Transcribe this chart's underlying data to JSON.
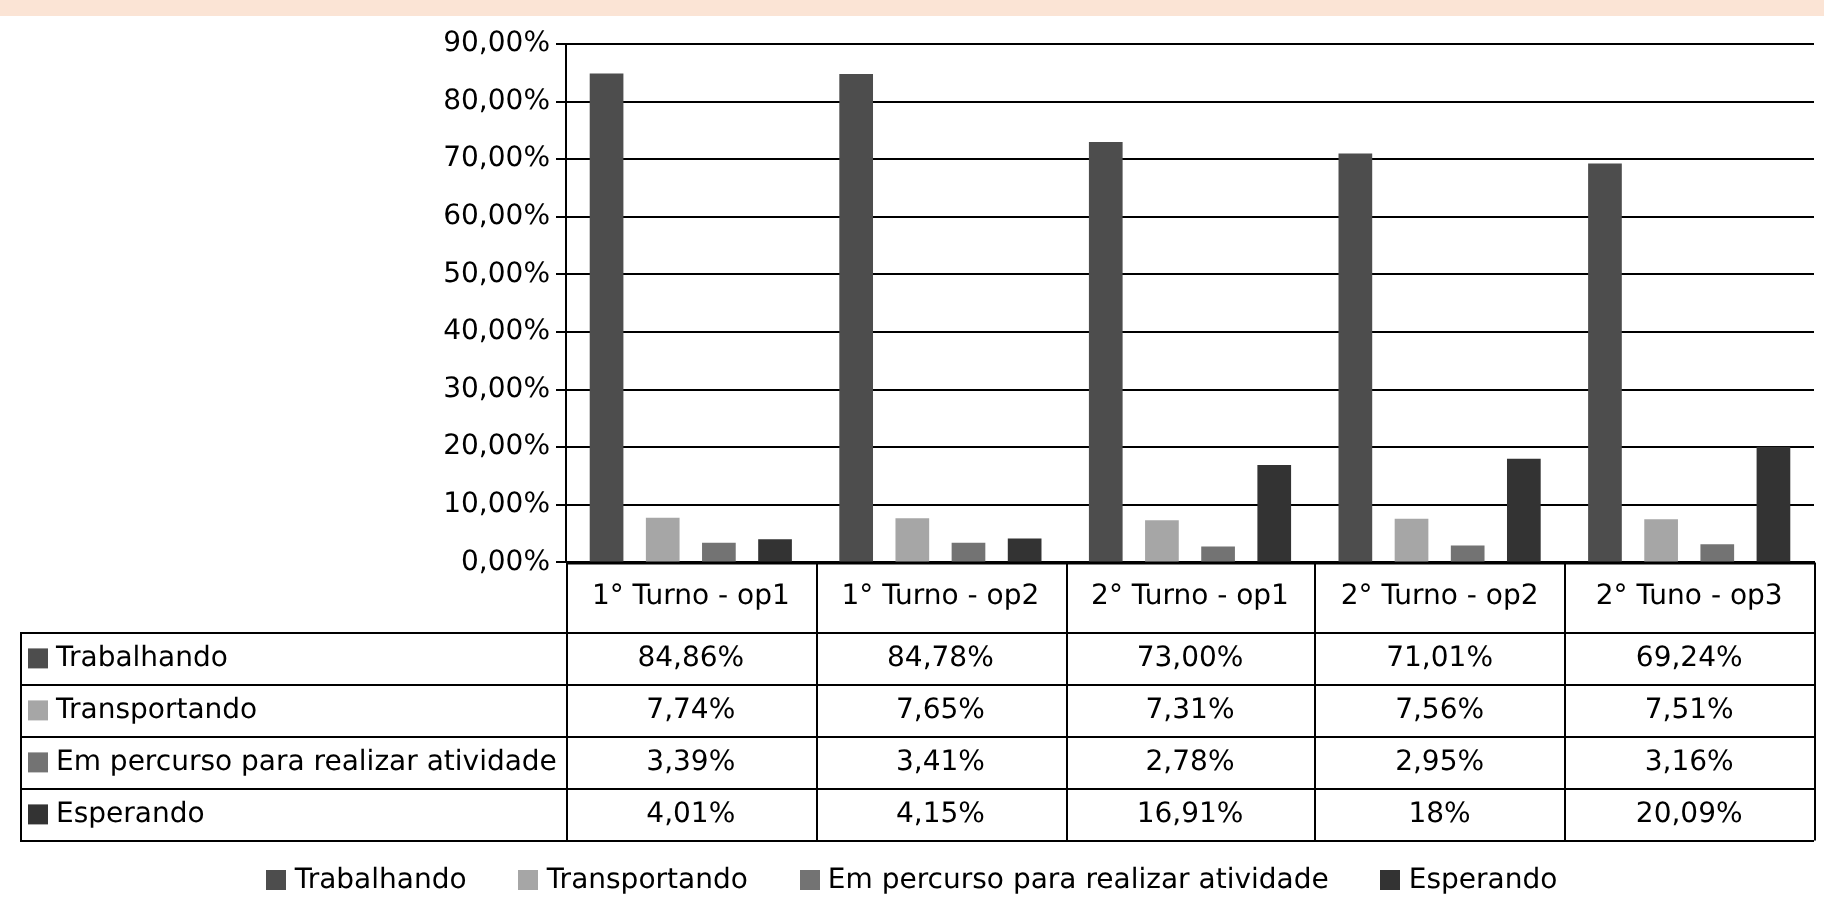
{
  "chart_data": {
    "type": "bar",
    "categories": [
      "1° Turno - op1",
      "1° Turno - op2",
      "2° Turno - op1",
      "2° Turno - op2",
      "2° Tuno - op3"
    ],
    "series": [
      {
        "name": "Trabalhando",
        "color": "#4d4d4d",
        "values": [
          84.86,
          84.78,
          73.0,
          71.01,
          69.24
        ],
        "value_labels": [
          "84,86%",
          "84,78%",
          "73,00%",
          "71,01%",
          "69,24%"
        ]
      },
      {
        "name": "Transportando",
        "color": "#a6a6a6",
        "values": [
          7.74,
          7.65,
          7.31,
          7.56,
          7.51
        ],
        "value_labels": [
          "7,74%",
          "7,65%",
          "7,31%",
          "7,56%",
          "7,51%"
        ]
      },
      {
        "name": "Em percurso para realizar atividade",
        "color": "#737373",
        "values": [
          3.39,
          3.41,
          2.78,
          2.95,
          3.16
        ],
        "value_labels": [
          "3,39%",
          "3,41%",
          "2,78%",
          "2,95%",
          "3,16%"
        ]
      },
      {
        "name": "Esperando",
        "color": "#333333",
        "values": [
          4.01,
          4.15,
          16.91,
          18,
          20.09
        ],
        "value_labels": [
          "4,01%",
          "4,15%",
          "16,91%",
          "18%",
          "20,09%"
        ]
      }
    ],
    "ylim": [
      0,
      90
    ],
    "yticks": [
      {
        "value": 0,
        "label": "0,00%"
      },
      {
        "value": 10,
        "label": "10,00%"
      },
      {
        "value": 20,
        "label": "20,00%"
      },
      {
        "value": 30,
        "label": "30,00%"
      },
      {
        "value": 40,
        "label": "40,00%"
      },
      {
        "value": 50,
        "label": "50,00%"
      },
      {
        "value": 60,
        "label": "60,00%"
      },
      {
        "value": 70,
        "label": "70,00%"
      },
      {
        "value": 80,
        "label": "80,00%"
      },
      {
        "value": 90,
        "label": "90,00%"
      }
    ],
    "grid": "y",
    "legend": "bottom"
  }
}
